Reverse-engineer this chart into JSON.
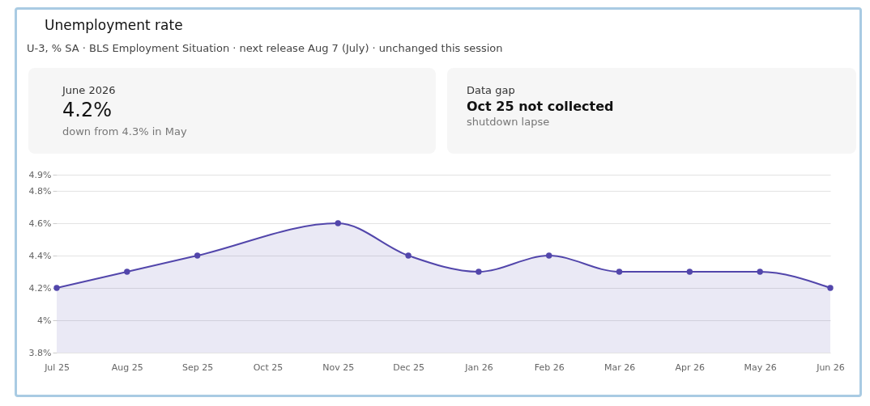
{
  "chart_data": {
    "type": "area",
    "title": "Unemployment rate",
    "subtitle": "U-3, % SA · BLS Employment Situation · next release Aug 7 (July) · unchanged this session",
    "annotations": [
      "June 2026",
      "4.2%",
      "down from 4.3% in May",
      "Data gap",
      "Oct 25 not collected",
      "shutdown lapse"
    ],
    "categories": [
      "Jul 25",
      "Aug 25",
      "Sep 25",
      "Oct 25",
      "Nov 25",
      "Dec 25",
      "Jan 26",
      "Feb 26",
      "Mar 26",
      "Apr 26",
      "May 26",
      "Jun 26"
    ],
    "series": [
      {
        "color": "#5246ab",
        "values": [
          4.2,
          4.3,
          4.4,
          null,
          4.6,
          4.4,
          4.3,
          4.4,
          4.3,
          4.3,
          4.3,
          4.2
        ]
      }
    ],
    "ylim": [
      3.8,
      4.9
    ],
    "yticks": [
      {
        "value": 3.8,
        "label": "3.8%"
      },
      {
        "value": 4.0,
        "label": "4%"
      },
      {
        "value": 4.2,
        "label": "4.2%"
      },
      {
        "value": 4.4,
        "label": "4.4%"
      },
      {
        "value": 4.6,
        "label": "4.6%"
      },
      {
        "value": 4.8,
        "label": "4.8%"
      },
      {
        "value": 4.9,
        "label": "4.9%"
      }
    ],
    "grid": "y",
    "marker": "circle",
    "line_style": "solid"
  }
}
